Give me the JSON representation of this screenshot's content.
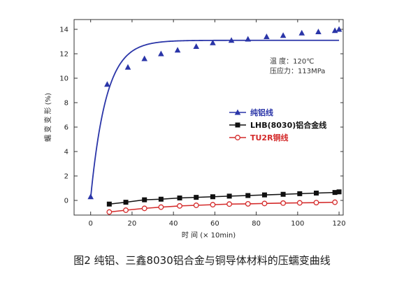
{
  "chart_data": {
    "type": "scatter",
    "title": "",
    "xlabel": "时 间 (× 10min)",
    "ylabel": "蠕 变 变 形 (%)",
    "xlim": [
      -8,
      122
    ],
    "ylim": [
      -1.2,
      14.8
    ],
    "xticks": [
      0,
      20,
      40,
      60,
      80,
      100,
      120
    ],
    "yticks": [
      0,
      2,
      4,
      6,
      8,
      10,
      12,
      14
    ],
    "grid": false,
    "legend_position": "middle-right",
    "annotation": [
      "温 度：120℃",
      "压应力：113MPa"
    ],
    "series": [
      {
        "name": "纯铝线",
        "marker": "triangle",
        "color": "#2a35a8",
        "x": [
          0,
          8,
          18,
          26,
          34,
          42,
          51,
          59,
          68,
          76,
          85,
          93,
          102,
          110,
          118,
          120
        ],
        "y": [
          0.3,
          9.5,
          10.9,
          11.6,
          12.0,
          12.3,
          12.6,
          12.9,
          13.1,
          13.2,
          13.4,
          13.5,
          13.7,
          13.8,
          13.9,
          14.0
        ],
        "fit": {
          "form": "a*(1-exp(-x/b))+c",
          "a": 12.9,
          "b": 7.5,
          "c": 0.2
        }
      },
      {
        "name": "LHB(8030)铝合金线",
        "marker": "square",
        "color": "#111111",
        "x": [
          9,
          17,
          26,
          34,
          43,
          51,
          59,
          67,
          76,
          84,
          93,
          101,
          109,
          118,
          120
        ],
        "y": [
          -0.3,
          -0.15,
          0.05,
          0.1,
          0.2,
          0.25,
          0.3,
          0.35,
          0.4,
          0.45,
          0.5,
          0.55,
          0.6,
          0.65,
          0.7
        ]
      },
      {
        "name": "TU2R铜线",
        "marker": "circle",
        "color": "#d42a2a",
        "x": [
          9,
          17,
          26,
          34,
          43,
          51,
          59,
          67,
          76,
          84,
          93,
          101,
          109,
          118
        ],
        "y": [
          -0.95,
          -0.8,
          -0.65,
          -0.55,
          -0.45,
          -0.4,
          -0.35,
          -0.3,
          -0.28,
          -0.25,
          -0.22,
          -0.2,
          -0.18,
          -0.15
        ]
      }
    ]
  },
  "caption": "图2 纯铝、三鑫8030铝合金与铜导体材料的压蠕变曲线"
}
